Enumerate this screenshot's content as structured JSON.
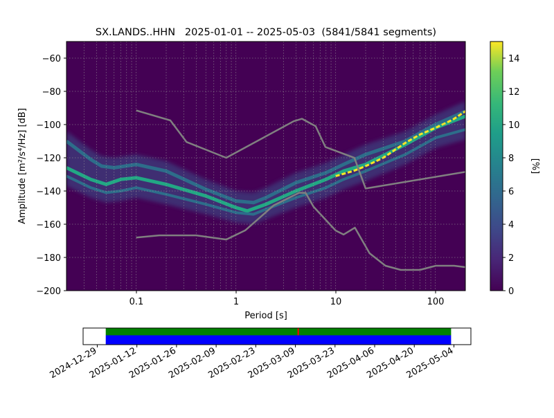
{
  "chart_data": [
    {
      "type": "heatmap",
      "title": "SX.LANDS..HHN   2025-01-01 -- 2025-05-03  (5841/5841 segments)",
      "xlabel": "Period [s]",
      "ylabel": "Amplitude [m²/s⁴/Hz] [dB]",
      "xscale": "log",
      "xlim": [
        0.02,
        200
      ],
      "ylim": [
        -200,
        -50
      ],
      "x_tick_labels": [
        "0.1",
        "1",
        "10",
        "100"
      ],
      "x_ticks": [
        0.1,
        1,
        10,
        100
      ],
      "y_tick_labels": [
        "−60",
        "−80",
        "−100",
        "−120",
        "−140",
        "−160",
        "−180",
        "−200"
      ],
      "y_ticks": [
        -60,
        -80,
        -100,
        -120,
        -140,
        -160,
        -180,
        -200
      ],
      "grid": true,
      "colormap": "viridis",
      "colorbar": {
        "label": "[%]",
        "range": [
          0,
          15
        ],
        "tick_labels": [
          "0",
          "2",
          "4",
          "6",
          "8",
          "10",
          "12",
          "14"
        ],
        "ticks": [
          0,
          2,
          4,
          6,
          8,
          10,
          12,
          14
        ]
      },
      "reference_curves": [
        {
          "role": "high-noise model",
          "color": "#808080",
          "points": [
            [
              0.1,
              -91.5
            ],
            [
              0.22,
              -97.5
            ],
            [
              0.32,
              -110.5
            ],
            [
              0.8,
              -120
            ],
            [
              3.8,
              -98
            ],
            [
              4.6,
              -96.5
            ],
            [
              6.3,
              -101
            ],
            [
              7.9,
              -113.5
            ],
            [
              15.4,
              -120
            ],
            [
              20,
              -138.5
            ],
            [
              354.8,
              -126
            ]
          ]
        },
        {
          "role": "low-noise model",
          "color": "#808080",
          "points": [
            [
              0.1,
              -168
            ],
            [
              0.17,
              -166.7
            ],
            [
              0.4,
              -166.7
            ],
            [
              0.8,
              -169.2
            ],
            [
              1.24,
              -163.7
            ],
            [
              2.4,
              -148.6
            ],
            [
              4.3,
              -141.1
            ],
            [
              5,
              -141.1
            ],
            [
              6,
              -149.4
            ],
            [
              10,
              -163.8
            ],
            [
              12,
              -166.2
            ],
            [
              15.6,
              -162.1
            ],
            [
              21.9,
              -177.5
            ],
            [
              31.6,
              -185
            ],
            [
              45,
              -187.5
            ],
            [
              70,
              -187.5
            ],
            [
              101,
              -185
            ],
            [
              154,
              -185
            ],
            [
              328,
              -187.5
            ]
          ]
        }
      ],
      "density_bands": [
        {
          "role": "upper spread",
          "points": [
            [
              0.02,
              -110
            ],
            [
              0.035,
              -121
            ],
            [
              0.045,
              -125
            ],
            [
              0.06,
              -126
            ],
            [
              0.1,
              -124
            ],
            [
              0.2,
              -128
            ],
            [
              0.5,
              -139
            ],
            [
              1,
              -146
            ],
            [
              1.5,
              -147
            ],
            [
              2,
              -144
            ],
            [
              4,
              -135
            ],
            [
              8,
              -129
            ],
            [
              12,
              -124
            ],
            [
              20,
              -118
            ],
            [
              50,
              -110
            ],
            [
              100,
              -100
            ],
            [
              200,
              -92
            ]
          ]
        },
        {
          "role": "mode",
          "points": [
            [
              0.02,
              -126
            ],
            [
              0.035,
              -133
            ],
            [
              0.05,
              -136
            ],
            [
              0.07,
              -133
            ],
            [
              0.1,
              -132
            ],
            [
              0.2,
              -136
            ],
            [
              0.5,
              -143
            ],
            [
              1,
              -150
            ],
            [
              1.3,
              -152
            ],
            [
              2,
              -148
            ],
            [
              4,
              -140
            ],
            [
              8,
              -133
            ],
            [
              12,
              -128
            ],
            [
              20,
              -124
            ],
            [
              50,
              -112
            ],
            [
              100,
              -102
            ],
            [
              200,
              -95
            ]
          ]
        },
        {
          "role": "lower spread",
          "points": [
            [
              0.02,
              -131
            ],
            [
              0.035,
              -138
            ],
            [
              0.05,
              -141
            ],
            [
              0.07,
              -140
            ],
            [
              0.1,
              -138
            ],
            [
              0.2,
              -142
            ],
            [
              0.5,
              -148
            ],
            [
              1,
              -153
            ],
            [
              1.5,
              -154
            ],
            [
              2,
              -151
            ],
            [
              4,
              -144
            ],
            [
              8,
              -138
            ],
            [
              12,
              -133
            ],
            [
              20,
              -128
            ],
            [
              50,
              -118
            ],
            [
              100,
              -108
            ],
            [
              200,
              -103
            ]
          ]
        }
      ],
      "highlight_mode": {
        "role": "sharp peak",
        "points": [
          [
            10,
            -131
          ],
          [
            15,
            -128
          ],
          [
            20,
            -125
          ],
          [
            30,
            -120
          ],
          [
            50,
            -111
          ],
          [
            70,
            -106
          ],
          [
            100,
            -102
          ],
          [
            150,
            -97
          ],
          [
            200,
            -92
          ]
        ]
      }
    },
    {
      "type": "timeline",
      "x_tick_labels": [
        "2024-12-29",
        "2025-01-12",
        "2025-01-26",
        "2025-02-09",
        "2025-02-23",
        "2025-03-09",
        "2025-03-23",
        "2025-04-06",
        "2025-04-20",
        "2025-05-04"
      ],
      "x_ticks": [
        "2024-12-29",
        "2025-01-12",
        "2025-01-26",
        "2025-02-09",
        "2025-02-23",
        "2025-03-09",
        "2025-03-23",
        "2025-04-06",
        "2025-04-20",
        "2025-05-04"
      ],
      "xlim": [
        "2024-12-24",
        "2025-05-10"
      ],
      "bars": [
        {
          "role": "processed",
          "color": "#008000",
          "start": "2025-01-01",
          "end": "2025-05-03"
        },
        {
          "role": "available",
          "color": "#0000ff",
          "start": "2025-01-01",
          "end": "2025-05-03"
        }
      ],
      "marker": {
        "color": "#ff0000",
        "date": "2025-03-10"
      }
    }
  ]
}
